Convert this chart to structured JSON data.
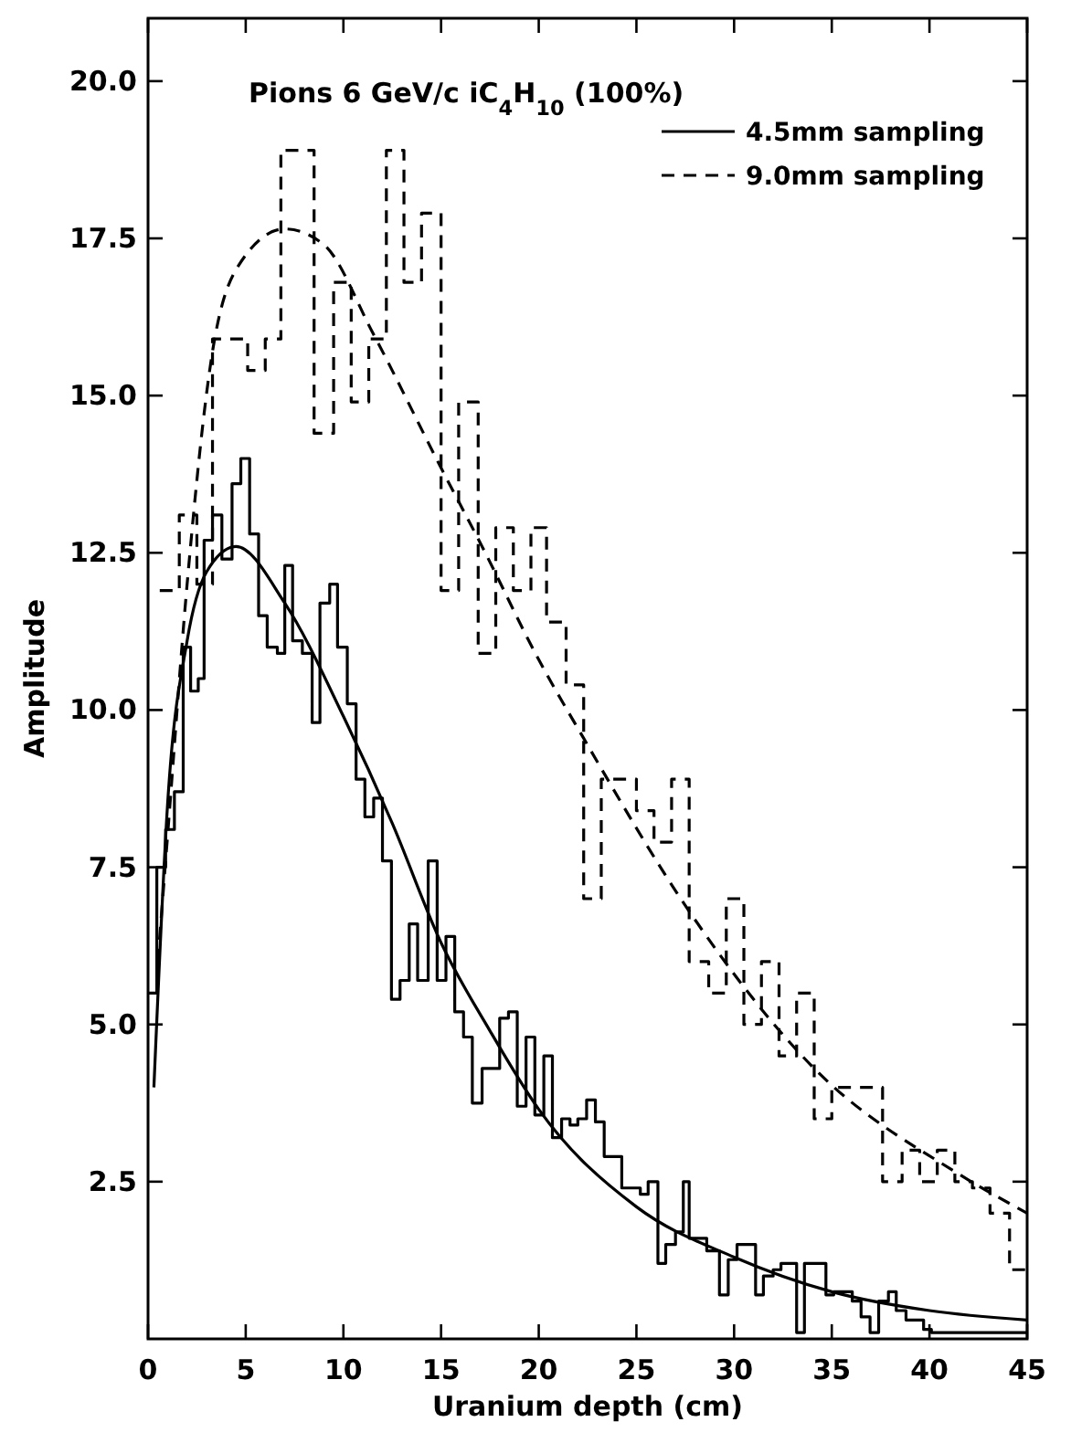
{
  "chart_data": {
    "type": "step",
    "xlabel": "Uranium depth (cm)",
    "ylabel": "Amplitude",
    "annotations": [
      "Pions 6 GeV/c  iC$_{4}$H$_{10}$ (100%)"
    ],
    "xlim": [
      0,
      45
    ],
    "xticks": [
      0,
      5,
      10,
      15,
      20,
      25,
      30,
      35,
      40,
      45
    ],
    "ylim": [
      0,
      21
    ],
    "yticks": [
      {
        "value": 2.5,
        "label": "2.5"
      },
      {
        "value": 5,
        "label": "5.0"
      },
      {
        "value": 7.5,
        "label": "7.5"
      },
      {
        "value": 10,
        "label": "10.0"
      },
      {
        "value": 12.5,
        "label": "12.5"
      },
      {
        "value": 15,
        "label": "15.0"
      },
      {
        "value": 17.5,
        "label": "17.5"
      },
      {
        "value": 20,
        "label": "20.0"
      }
    ],
    "grid": false,
    "legend": "top right",
    "series": [
      {
        "name": "4.5mm sampling",
        "color": "#000000",
        "line_style": "solid",
        "x": [
          0,
          0.45,
          0.9,
          1.35,
          1.8,
          2.18,
          2.57,
          2.87,
          3.3,
          3.78,
          4.3,
          4.75,
          5.2,
          5.66,
          6.1,
          6.62,
          7.0,
          7.4,
          7.9,
          8.4,
          8.8,
          9.3,
          9.7,
          10.2,
          10.65,
          11.1,
          11.55,
          12.0,
          12.46,
          12.9,
          13.37,
          13.8,
          14.34,
          14.8,
          15.25,
          15.7,
          16.15,
          16.6,
          17.1,
          18.0,
          18.45,
          18.9,
          19.35,
          19.8,
          20.26,
          20.7,
          21.17,
          21.6,
          22.0,
          22.45,
          22.9,
          23.35,
          24.25,
          25.2,
          25.6,
          26.1,
          26.5,
          27.0,
          27.4,
          27.7,
          28.6,
          29.25,
          29.7,
          30.15,
          31.1,
          31.5,
          32.0,
          32.4,
          33.2,
          33.6,
          34.1,
          34.7,
          35.1,
          36.05,
          36.5,
          36.96,
          37.4,
          37.9,
          38.3,
          38.8,
          39.7,
          40.1,
          45
        ],
        "values": [
          5.5,
          7.5,
          8.1,
          8.7,
          11.0,
          10.3,
          10.5,
          12.7,
          13.1,
          12.4,
          13.6,
          14.0,
          12.8,
          11.5,
          11.0,
          10.9,
          12.3,
          11.1,
          10.9,
          9.8,
          11.7,
          12.0,
          11.0,
          10.1,
          8.9,
          8.3,
          8.6,
          7.6,
          5.4,
          5.7,
          6.6,
          5.7,
          7.6,
          5.7,
          6.4,
          5.2,
          4.8,
          3.75,
          4.3,
          5.1,
          5.2,
          3.7,
          4.8,
          3.56,
          4.5,
          3.2,
          3.5,
          3.4,
          3.5,
          3.8,
          3.45,
          2.9,
          2.4,
          2.3,
          2.5,
          1.2,
          1.5,
          1.7,
          2.5,
          1.6,
          1.4,
          0.7,
          1.26,
          1.5,
          0.7,
          1.0,
          1.1,
          1.2,
          0.1,
          1.2,
          1.2,
          0.7,
          0.75,
          0.6,
          0.35,
          0.1,
          0.6,
          0.75,
          0.45,
          0.3,
          0.15,
          0.1,
          0.1
        ]
      },
      {
        "name": "9.0mm sampling",
        "color": "#000000",
        "line_style": "dashed",
        "x": [
          0.6,
          1.6,
          2.5,
          3.3,
          5.1,
          6.0,
          6.8,
          8.5,
          9.5,
          10.4,
          11.3,
          12.2,
          13.1,
          14.0,
          15.0,
          15.9,
          16.9,
          17.8,
          18.7,
          19.6,
          20.4,
          21.4,
          22.3,
          23.2,
          25.0,
          25.9,
          26.8,
          27.7,
          28.7,
          29.6,
          30.5,
          31.4,
          32.3,
          33.2,
          34.1,
          35.0,
          37.6,
          38.6,
          39.5,
          40.4,
          41.3,
          42.2,
          43.1,
          44.1,
          45
        ],
        "values": [
          11.9,
          13.1,
          12.0,
          15.9,
          15.4,
          15.9,
          18.9,
          14.4,
          16.8,
          14.9,
          15.9,
          18.9,
          16.8,
          17.9,
          11.9,
          14.9,
          10.9,
          12.9,
          11.9,
          12.9,
          11.4,
          10.4,
          7.0,
          8.9,
          8.4,
          7.9,
          8.9,
          6.0,
          5.5,
          7.0,
          5.0,
          6.0,
          4.5,
          5.5,
          3.5,
          4.0,
          2.5,
          3.0,
          2.5,
          3.0,
          2.5,
          2.4,
          2.0,
          1.1,
          1.1
        ]
      },
      {
        "type": "line",
        "color": "#000000",
        "line_style": "solid",
        "x": [
          0.3,
          1,
          2,
          3,
          4.5,
          7,
          10,
          12.5,
          15,
          17.5,
          20,
          25,
          30,
          35,
          40,
          45
        ],
        "values": [
          4.0,
          8.5,
          11.1,
          12.2,
          12.6,
          11.7,
          9.9,
          8.2,
          6.3,
          4.9,
          3.65,
          2.1,
          1.3,
          0.75,
          0.45,
          0.3
        ]
      },
      {
        "type": "line",
        "color": "#000000",
        "line_style": "dashed",
        "x": [
          0.5,
          1,
          2,
          3.3,
          4.5,
          7,
          9,
          11.5,
          15,
          17.1,
          20,
          22.3,
          27.7,
          34.1,
          41.35,
          45
        ],
        "values": [
          6.0,
          8.0,
          12.0,
          15.7,
          17.0,
          17.65,
          17.4,
          16.0,
          13.85,
          12.6,
          10.8,
          9.55,
          6.8,
          4.3,
          2.65,
          2.0
        ]
      }
    ]
  }
}
